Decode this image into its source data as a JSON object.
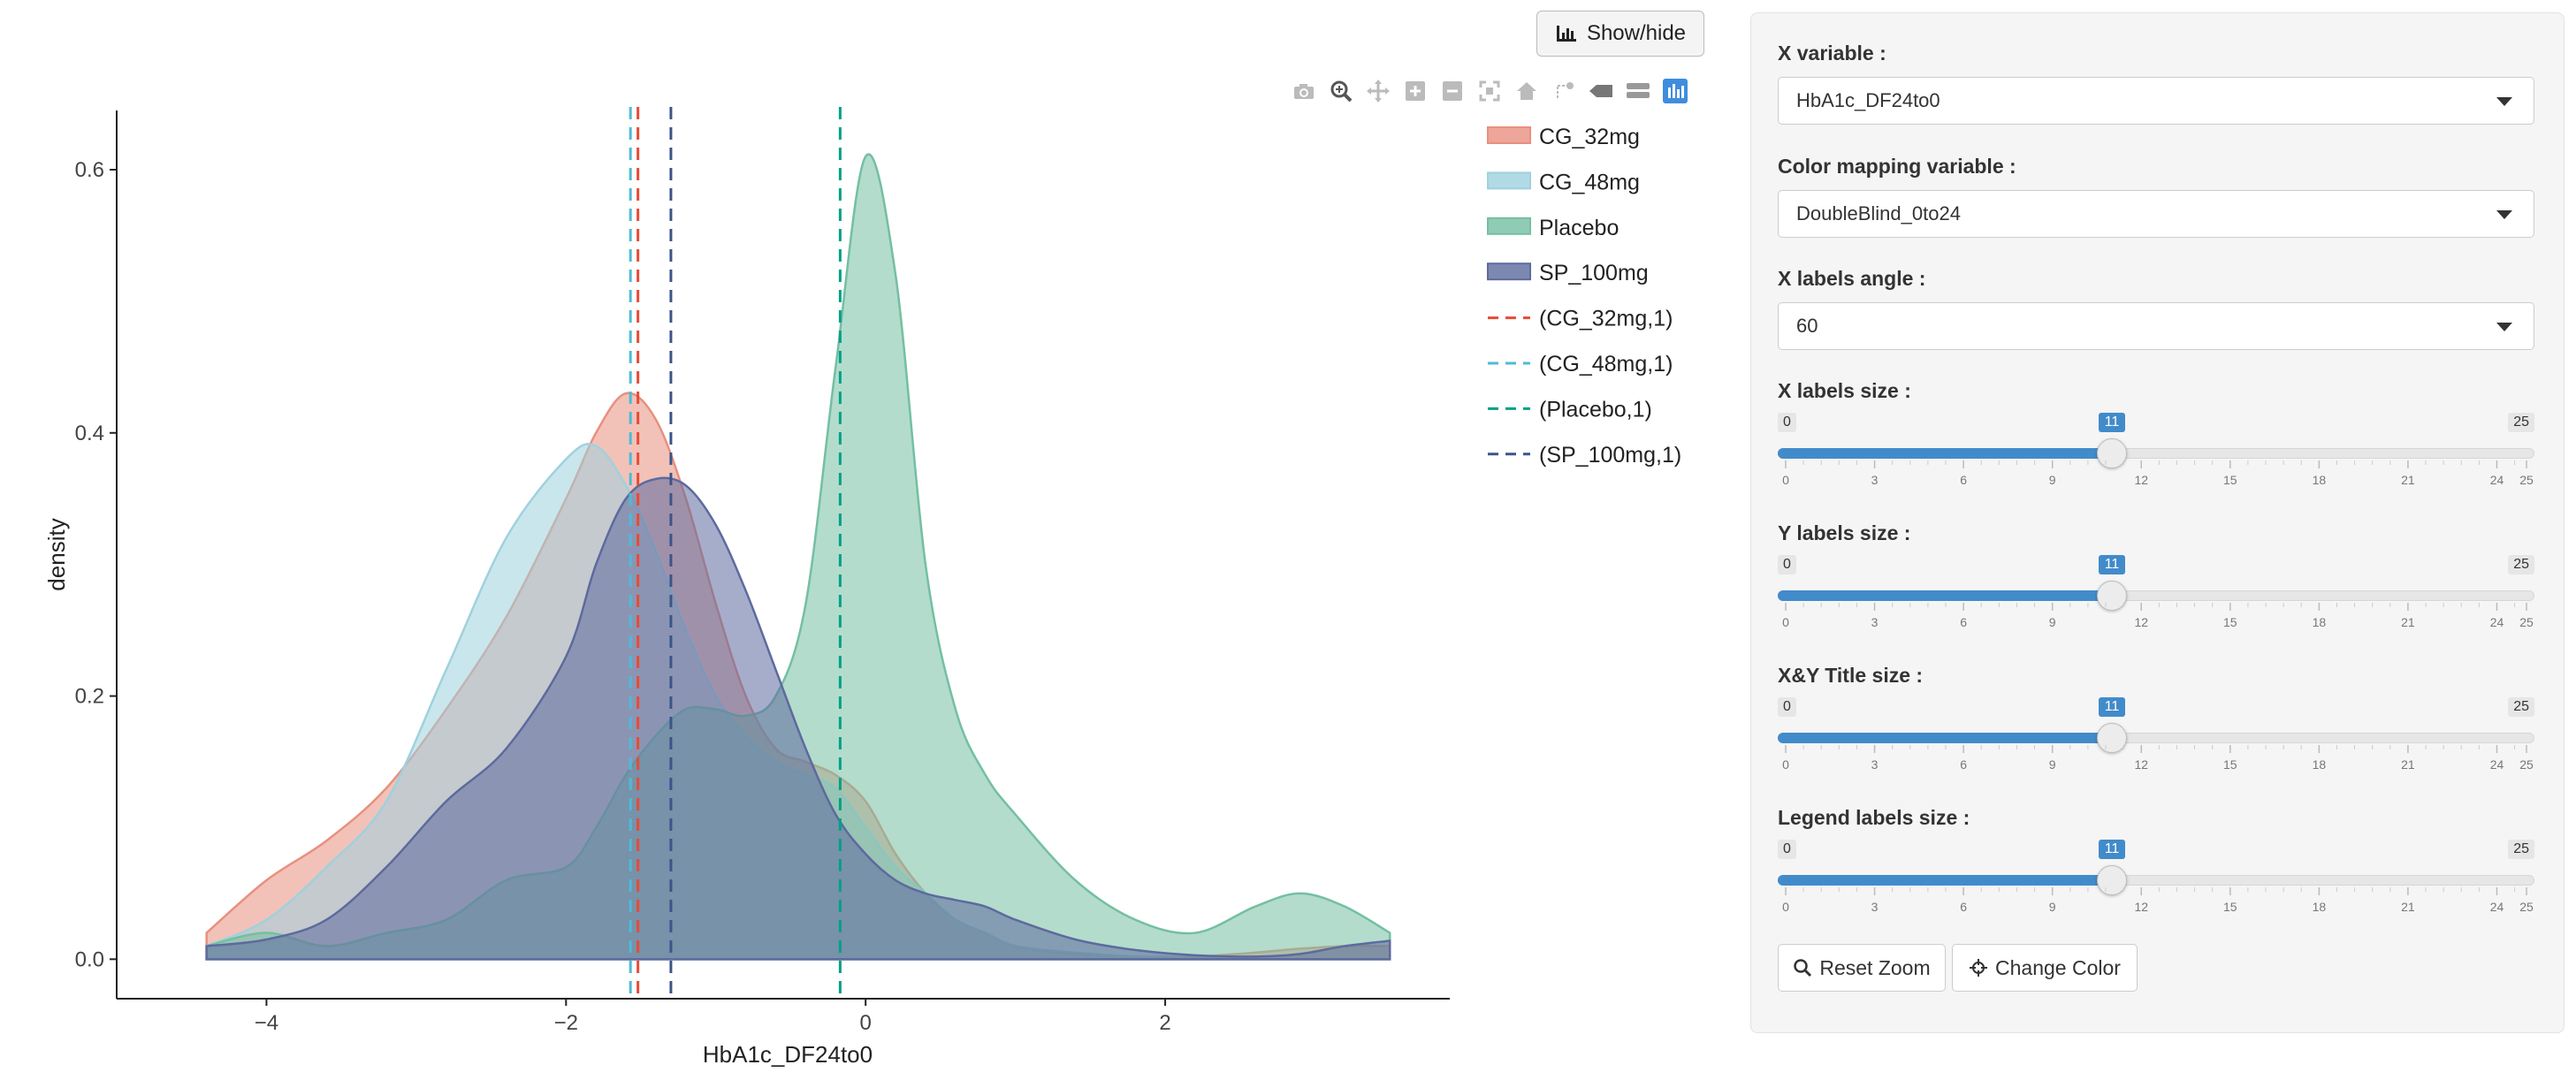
{
  "show_hide_label": "Show/hide",
  "modebar": {
    "icons": [
      "camera-icon",
      "zoom-icon",
      "pan-icon",
      "zoom-in-icon",
      "zoom-out-icon",
      "autoscale-icon",
      "reset-axes-icon",
      "spike-lines-icon",
      "hover-closest-icon",
      "hover-compare-icon",
      "plotly-logo-icon"
    ]
  },
  "colors": {
    "CG_32mg": "#E8907F",
    "CG_48mg": "#9FD1DE",
    "Placebo": "#74BFA2",
    "SP_100mg": "#5D6A9E",
    "CG_32mg_line": "#E64B35",
    "CG_48mg_line": "#4DBBD5",
    "Placebo_line": "#00A087",
    "SP_100mg_line": "#3C5488"
  },
  "chart_data": {
    "type": "area",
    "xlabel": "HbA1c_DF24to0",
    "ylabel": "density",
    "xlim": [
      -5.0,
      3.9
    ],
    "ylim": [
      -0.03,
      0.645
    ],
    "xticks": [
      -4,
      -2,
      0,
      2
    ],
    "yticks": [
      0.0,
      0.2,
      0.4,
      0.6
    ],
    "xtick_labels": [
      "−4",
      "−2",
      "0",
      "2"
    ],
    "ytick_labels": [
      "0.0",
      "0.2",
      "0.4",
      "0.6"
    ],
    "x": [
      -4.4,
      -4.0,
      -3.6,
      -3.2,
      -2.8,
      -2.4,
      -2.0,
      -1.8,
      -1.6,
      -1.4,
      -1.2,
      -1.0,
      -0.8,
      -0.6,
      -0.4,
      -0.2,
      0.0,
      0.2,
      0.4,
      0.6,
      0.8,
      1.0,
      1.4,
      1.8,
      2.2,
      2.6,
      2.9,
      3.2,
      3.5
    ],
    "series": [
      {
        "name": "CG_32mg",
        "values": [
          0.02,
          0.06,
          0.09,
          0.13,
          0.19,
          0.26,
          0.35,
          0.4,
          0.43,
          0.41,
          0.35,
          0.27,
          0.2,
          0.16,
          0.15,
          0.14,
          0.12,
          0.08,
          0.05,
          0.03,
          0.02,
          0.01,
          0.004,
          0.002,
          0.002,
          0.005,
          0.008,
          0.01,
          0.01
        ]
      },
      {
        "name": "CG_48mg",
        "values": [
          0.01,
          0.03,
          0.07,
          0.12,
          0.22,
          0.32,
          0.38,
          0.39,
          0.36,
          0.31,
          0.25,
          0.2,
          0.17,
          0.15,
          0.14,
          0.13,
          0.1,
          0.07,
          0.05,
          0.03,
          0.02,
          0.01,
          0.005,
          0.002,
          0.001,
          0.0,
          0.0,
          0.0,
          0.0
        ]
      },
      {
        "name": "Placebo",
        "values": [
          0.01,
          0.02,
          0.01,
          0.02,
          0.03,
          0.06,
          0.07,
          0.1,
          0.14,
          0.17,
          0.19,
          0.19,
          0.185,
          0.2,
          0.27,
          0.45,
          0.61,
          0.52,
          0.3,
          0.19,
          0.14,
          0.11,
          0.06,
          0.03,
          0.02,
          0.04,
          0.05,
          0.04,
          0.02
        ]
      },
      {
        "name": "SP_100mg",
        "values": [
          0.01,
          0.015,
          0.03,
          0.07,
          0.12,
          0.16,
          0.23,
          0.3,
          0.35,
          0.365,
          0.36,
          0.33,
          0.28,
          0.22,
          0.16,
          0.11,
          0.08,
          0.06,
          0.05,
          0.045,
          0.04,
          0.03,
          0.015,
          0.007,
          0.003,
          0.002,
          0.004,
          0.01,
          0.014
        ]
      }
    ],
    "mean_lines": [
      {
        "name": "(CG_32mg,1)",
        "x": -1.52
      },
      {
        "name": "(CG_48mg,1)",
        "x": -1.57
      },
      {
        "name": "(Placebo,1)",
        "x": -0.17
      },
      {
        "name": "(SP_100mg,1)",
        "x": -1.3
      }
    ],
    "legend": [
      "CG_32mg",
      "CG_48mg",
      "Placebo",
      "SP_100mg",
      "(CG_32mg,1)",
      "(CG_48mg,1)",
      "(Placebo,1)",
      "(SP_100mg,1)"
    ],
    "legend_position": "right",
    "grid": false
  },
  "sidebar": {
    "x_variable": {
      "label": "X variable :",
      "value": "HbA1c_DF24to0"
    },
    "color_variable": {
      "label": "Color mapping variable :",
      "value": "DoubleBlind_0to24"
    },
    "x_angle": {
      "label": "X labels angle :",
      "value": "60"
    },
    "sliders": [
      {
        "label": "X labels size :",
        "min": 0,
        "max": 25,
        "value": 11
      },
      {
        "label": "Y labels size :",
        "min": 0,
        "max": 25,
        "value": 11
      },
      {
        "label": "X&Y Title size :",
        "min": 0,
        "max": 25,
        "value": 11
      },
      {
        "label": "Legend labels size :",
        "min": 0,
        "max": 25,
        "value": 11
      }
    ],
    "tick_labels": [
      "0",
      "3",
      "6",
      "9",
      "12",
      "15",
      "18",
      "21",
      "24",
      "25"
    ],
    "reset_zoom": "Reset Zoom",
    "change_color": "Change Color"
  }
}
